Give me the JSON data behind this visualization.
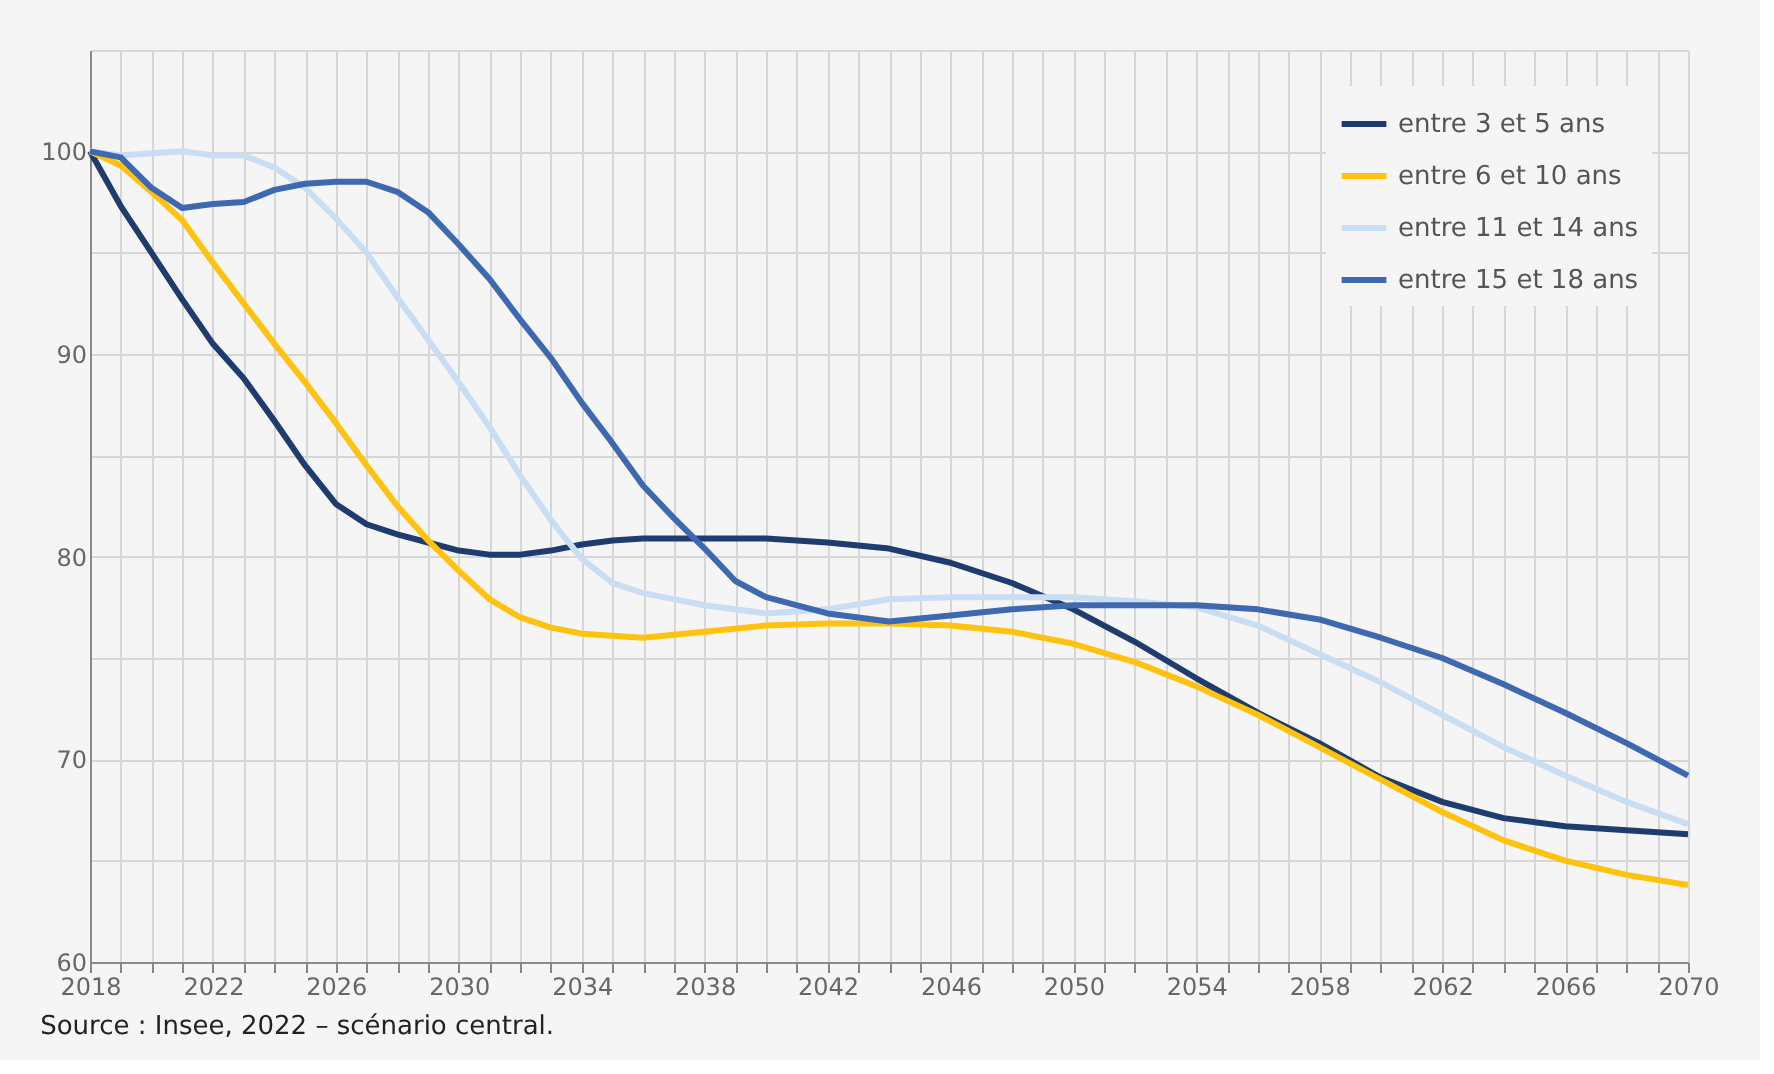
{
  "chart_data": {
    "type": "line",
    "annotations": [
      "Source : Insee, 2022 – scénario central."
    ],
    "series": [
      {
        "name": "entre 3 et 5 ans",
        "color": "#1f3c6e",
        "x": [
          2018,
          2019,
          2020,
          2021,
          2022,
          2023,
          2024,
          2025,
          2026,
          2027,
          2028,
          2029,
          2030,
          2031,
          2032,
          2033,
          2034,
          2035,
          2036,
          2038,
          2040,
          2042,
          2044,
          2046,
          2048,
          2050,
          2052,
          2054,
          2056,
          2058,
          2060,
          2062,
          2064,
          2066,
          2068,
          2070
        ],
        "values": [
          100,
          97.3,
          95,
          92.7,
          90.5,
          88.8,
          86.7,
          84.5,
          82.6,
          81.6,
          81.1,
          80.7,
          80.3,
          80.1,
          80.1,
          80.3,
          80.6,
          80.8,
          80.9,
          80.9,
          80.9,
          80.7,
          80.4,
          79.7,
          78.7,
          77.4,
          75.8,
          74.0,
          72.3,
          70.8,
          69.1,
          67.9,
          67.1,
          66.7,
          66.5,
          66.3
        ]
      },
      {
        "name": "entre 6 et 10 ans",
        "color": "#ffc20e",
        "x": [
          2018,
          2019,
          2020,
          2021,
          2022,
          2023,
          2024,
          2025,
          2026,
          2027,
          2028,
          2029,
          2030,
          2031,
          2032,
          2033,
          2034,
          2036,
          2038,
          2040,
          2042,
          2044,
          2046,
          2048,
          2050,
          2052,
          2054,
          2056,
          2058,
          2060,
          2062,
          2064,
          2066,
          2068,
          2070
        ],
        "values": [
          100,
          99.3,
          98,
          96.6,
          94.5,
          92.5,
          90.5,
          88.6,
          86.6,
          84.5,
          82.5,
          80.8,
          79.3,
          77.9,
          77.0,
          76.5,
          76.2,
          76.0,
          76.3,
          76.6,
          76.7,
          76.7,
          76.6,
          76.3,
          75.7,
          74.8,
          73.6,
          72.2,
          70.6,
          69.0,
          67.4,
          66.0,
          65.0,
          64.3,
          63.8
        ]
      },
      {
        "name": "entre 11 et 14 ans",
        "color": "#c9ddf3",
        "x": [
          2018,
          2019,
          2020,
          2021,
          2022,
          2023,
          2024,
          2025,
          2026,
          2027,
          2028,
          2029,
          2030,
          2031,
          2032,
          2033,
          2034,
          2035,
          2036,
          2038,
          2040,
          2042,
          2044,
          2046,
          2048,
          2050,
          2052,
          2054,
          2056,
          2058,
          2060,
          2062,
          2064,
          2066,
          2068,
          2070
        ],
        "values": [
          100,
          99.8,
          99.9,
          100.0,
          99.8,
          99.8,
          99.2,
          98.2,
          96.7,
          95.0,
          92.8,
          90.7,
          88.6,
          86.4,
          84.0,
          81.8,
          79.9,
          78.7,
          78.2,
          77.6,
          77.2,
          77.4,
          77.9,
          78.0,
          78.0,
          78.0,
          77.8,
          77.5,
          76.6,
          75.2,
          73.8,
          72.2,
          70.6,
          69.2,
          67.9,
          66.8
        ]
      },
      {
        "name": "entre 15 et 18 ans",
        "color": "#3e68b0",
        "x": [
          2018,
          2019,
          2020,
          2021,
          2022,
          2023,
          2024,
          2025,
          2026,
          2027,
          2028,
          2029,
          2030,
          2031,
          2032,
          2033,
          2034,
          2035,
          2036,
          2037,
          2038,
          2039,
          2040,
          2042,
          2044,
          2046,
          2048,
          2050,
          2052,
          2054,
          2056,
          2058,
          2060,
          2062,
          2064,
          2066,
          2068,
          2070
        ],
        "values": [
          100,
          99.7,
          98.2,
          97.2,
          97.4,
          97.5,
          98.1,
          98.4,
          98.5,
          98.5,
          98.0,
          97.0,
          95.4,
          93.7,
          91.7,
          89.8,
          87.6,
          85.6,
          83.5,
          81.9,
          80.4,
          78.8,
          78.0,
          77.2,
          76.8,
          77.1,
          77.4,
          77.6,
          77.6,
          77.6,
          77.4,
          76.9,
          76.0,
          75.0,
          73.7,
          72.3,
          70.8,
          69.2
        ]
      }
    ],
    "xlim": [
      2018,
      2070
    ],
    "xticks": [
      2018,
      {
        "value": 2019,
        "label": null
      },
      {
        "value": 2020,
        "label": null
      },
      {
        "value": 2021,
        "label": null
      },
      2022,
      {
        "value": 2023,
        "label": null
      },
      {
        "value": 2024,
        "label": null
      },
      {
        "value": 2025,
        "label": null
      },
      2026,
      {
        "value": 2027,
        "label": null
      },
      {
        "value": 2028,
        "label": null
      },
      {
        "value": 2029,
        "label": null
      },
      2030,
      {
        "value": 2031,
        "label": null
      },
      {
        "value": 2032,
        "label": null
      },
      {
        "value": 2033,
        "label": null
      },
      2034,
      {
        "value": 2035,
        "label": null
      },
      {
        "value": 2036,
        "label": null
      },
      {
        "value": 2037,
        "label": null
      },
      2038,
      {
        "value": 2039,
        "label": null
      },
      {
        "value": 2040,
        "label": null
      },
      {
        "value": 2041,
        "label": null
      },
      2042,
      {
        "value": 2043,
        "label": null
      },
      {
        "value": 2044,
        "label": null
      },
      {
        "value": 2045,
        "label": null
      },
      2046,
      {
        "value": 2047,
        "label": null
      },
      {
        "value": 2048,
        "label": null
      },
      {
        "value": 2049,
        "label": null
      },
      2050,
      {
        "value": 2051,
        "label": null
      },
      {
        "value": 2052,
        "label": null
      },
      {
        "value": 2053,
        "label": null
      },
      2054,
      {
        "value": 2055,
        "label": null
      },
      {
        "value": 2056,
        "label": null
      },
      {
        "value": 2057,
        "label": null
      },
      2058,
      {
        "value": 2059,
        "label": null
      },
      {
        "value": 2060,
        "label": null
      },
      {
        "value": 2061,
        "label": null
      },
      2062,
      {
        "value": 2063,
        "label": null
      },
      {
        "value": 2064,
        "label": null
      },
      {
        "value": 2065,
        "label": null
      },
      2066,
      {
        "value": 2067,
        "label": null
      },
      {
        "value": 2068,
        "label": null
      },
      {
        "value": 2069,
        "label": null
      },
      2070
    ],
    "ylim": [
      60,
      105
    ],
    "yticks": [
      60,
      {
        "value": 65,
        "label": null
      },
      70,
      {
        "value": 75,
        "label": null
      },
      80,
      {
        "value": 85,
        "label": null
      },
      90,
      {
        "value": 95,
        "label": null
      },
      100,
      {
        "value": 105,
        "label": null
      }
    ],
    "grid": true,
    "legend": "top right",
    "line_style": "solid",
    "marker": "none"
  }
}
